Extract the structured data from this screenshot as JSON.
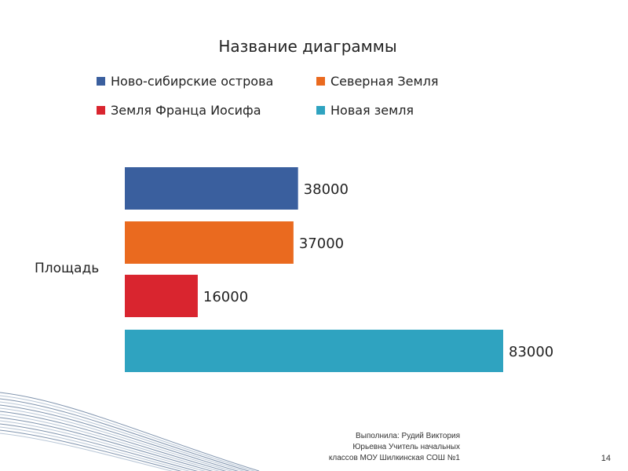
{
  "chart_data": {
    "type": "bar",
    "orientation": "horizontal",
    "title": "Название диаграммы",
    "category": "Площадь",
    "series": [
      {
        "name": "Ново-сибирские острова",
        "value": 38000,
        "color": "#3a5f9e"
      },
      {
        "name": "Северная Земля",
        "value": 37000,
        "color": "#ea6a1f"
      },
      {
        "name": "Земля Франца  Иосифа",
        "value": 16000,
        "color": "#d9252f"
      },
      {
        "name": "Новая земля",
        "value": 83000,
        "color": "#2fa3c0"
      }
    ],
    "data_labels": [
      "38000",
      "37000",
      "16000",
      "83000"
    ],
    "legend_position": "top",
    "grid": false
  },
  "footer": {
    "line1": "Выполнила:  Рудий Виктория",
    "line2": "Юрьевна Учитель начальных",
    "line3": "классов МОУ Шилкинская СОШ №1"
  },
  "page_number": "14"
}
